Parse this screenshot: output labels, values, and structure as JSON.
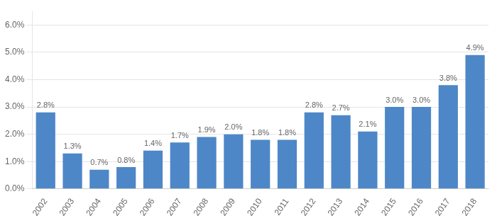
{
  "chart_data": {
    "type": "bar",
    "categories": [
      "2002",
      "2003",
      "2004",
      "2005",
      "2006",
      "2007",
      "2008",
      "2009",
      "2010",
      "2011",
      "2012",
      "2013",
      "2014",
      "2015",
      "2016",
      "2017",
      "2018"
    ],
    "values": [
      2.8,
      1.3,
      0.7,
      0.8,
      1.4,
      1.7,
      1.9,
      2.0,
      1.8,
      1.8,
      2.8,
      2.7,
      2.1,
      3.0,
      3.0,
      3.8,
      4.9
    ],
    "value_labels": [
      "2.8%",
      "1.3%",
      "0.7%",
      "0.8%",
      "1.4%",
      "1.7%",
      "1.9%",
      "2.0%",
      "1.8%",
      "1.8%",
      "2.8%",
      "2.7%",
      "2.1%",
      "3.0%",
      "3.0%",
      "3.8%",
      "4.9%"
    ],
    "color": "#4d87c7",
    "ylim": [
      0,
      6.5
    ],
    "yticks": [
      {
        "value": 0.0,
        "label": "0.0%"
      },
      {
        "value": 1.0,
        "label": "1.0%"
      },
      {
        "value": 2.0,
        "label": "2.0%"
      },
      {
        "value": 3.0,
        "label": "3.0%"
      },
      {
        "value": 4.0,
        "label": "4.0%"
      },
      {
        "value": 5.0,
        "label": "5.0%"
      },
      {
        "value": 6.0,
        "label": "6.0%"
      }
    ],
    "grid": true,
    "data_labels": true
  }
}
